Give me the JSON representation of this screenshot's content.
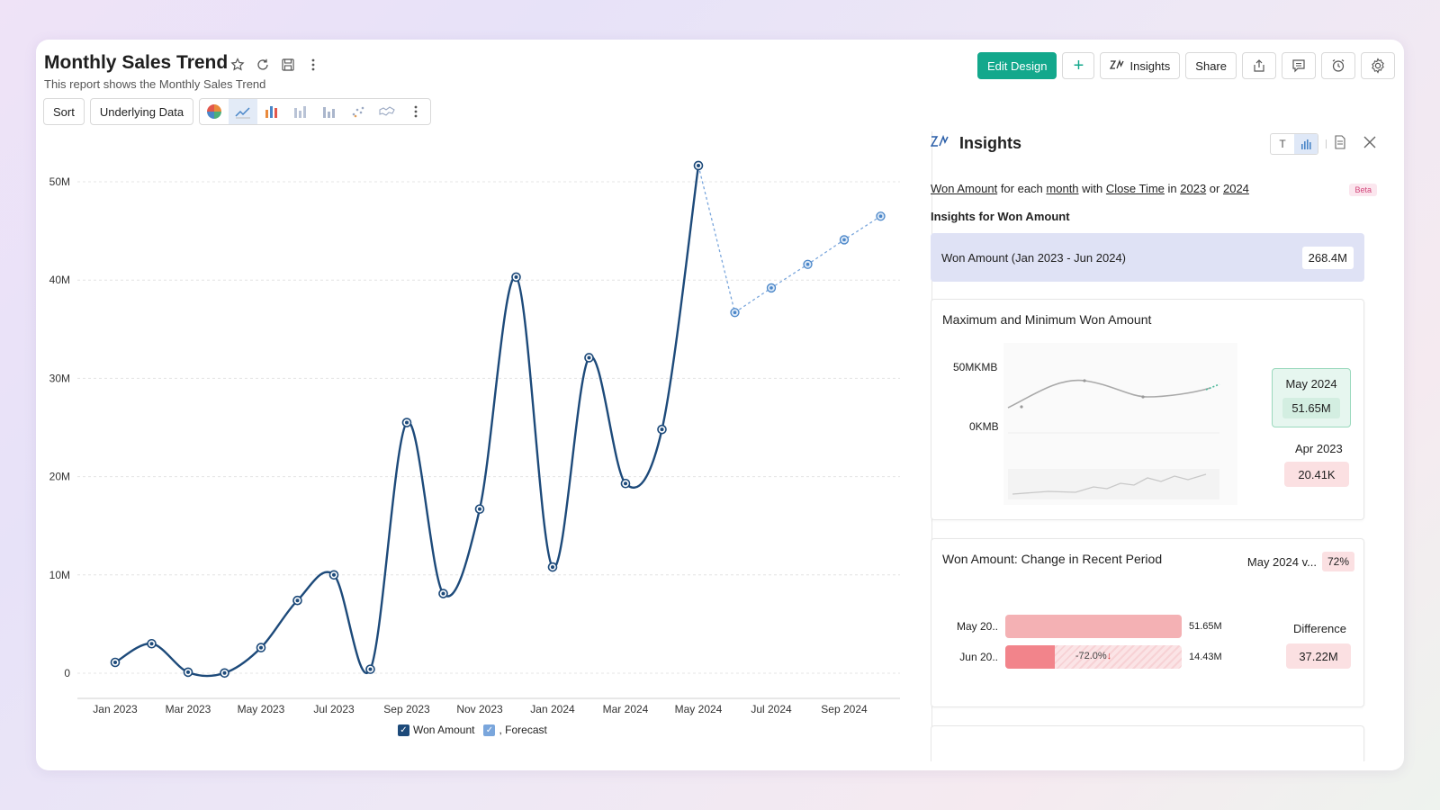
{
  "header": {
    "title": "Monthly Sales Trend",
    "subtitle": "This report shows the Monthly Sales Trend"
  },
  "top_actions": {
    "edit_design": "Edit Design",
    "add": "+",
    "insights": "Insights",
    "share": "Share"
  },
  "toolbar": {
    "sort": "Sort",
    "underlying_data": "Underlying Data"
  },
  "colors": {
    "accent": "#13a88c",
    "line": "#1d4a7a",
    "forecast": "#4a86c8"
  },
  "chart_data": {
    "type": "line",
    "x_ticks": [
      "Jan 2023",
      "Mar 2023",
      "May 2023",
      "Jul 2023",
      "Sep 2023",
      "Nov 2023",
      "Jan 2024",
      "Mar 2024",
      "May 2024",
      "Jul 2024",
      "Sep 2024"
    ],
    "y_ticks": [
      "50M",
      "40M",
      "30M",
      "20M",
      "10M",
      "0"
    ],
    "ylim": [
      0,
      50
    ],
    "grid": true,
    "series": [
      {
        "name": "Won Amount",
        "x": [
          "Jan 2023",
          "Feb 2023",
          "Mar 2023",
          "Apr 2023",
          "May 2023",
          "Jun 2023",
          "Jul 2023",
          "Aug 2023",
          "Sep 2023",
          "Oct 2023",
          "Nov 2023",
          "Dec 2023",
          "Jan 2024",
          "Feb 2024",
          "Mar 2024",
          "Apr 2024",
          "May 2024"
        ],
        "values": [
          1.1,
          3.0,
          0.1,
          0.02,
          2.6,
          7.4,
          10.0,
          0.4,
          25.5,
          8.1,
          16.7,
          40.3,
          10.8,
          32.1,
          19.3,
          24.8,
          51.65
        ]
      },
      {
        "name": "Forecast",
        "x": [
          "May 2024",
          "Jun 2024",
          "Jul 2024",
          "Aug 2024",
          "Sep 2024",
          "Oct 2024"
        ],
        "values": [
          51.65,
          36.7,
          39.2,
          41.6,
          44.1,
          46.5
        ]
      }
    ]
  },
  "legend": {
    "won": "Won Amount",
    "forecast": ", Forecast"
  },
  "insights": {
    "title": "Insights",
    "query_parts": [
      "Won Amount",
      " for each ",
      "month",
      " with ",
      "Close Time",
      " in ",
      "2023",
      " or ",
      "2024"
    ],
    "beta": "Beta",
    "insights_for": "Insights for Won Amount",
    "summary_label": "Won Amount (Jan 2023 - Jun 2024)",
    "summary_value": "268.4M",
    "maxmin": {
      "title": "Maximum and Minimum Won Amount",
      "y_top": "50MKMB",
      "y_bottom": "0KMB",
      "max_month": "May 2024",
      "max_value": "51.65M",
      "min_month": "Apr 2023",
      "min_value": "20.41K"
    },
    "change": {
      "title": "Won Amount: Change in Recent Period",
      "period": "May 2024 v...",
      "pct": "72%",
      "row1_label": "May 20..",
      "row1_value": "51.65M",
      "row1_fraction": 1.0,
      "row2_label": "Jun 20..",
      "row2_value": "14.43M",
      "row2_fraction": 0.28,
      "row2_change": "-72.0%",
      "difference_label": "Difference",
      "difference_value": "37.22M"
    }
  }
}
